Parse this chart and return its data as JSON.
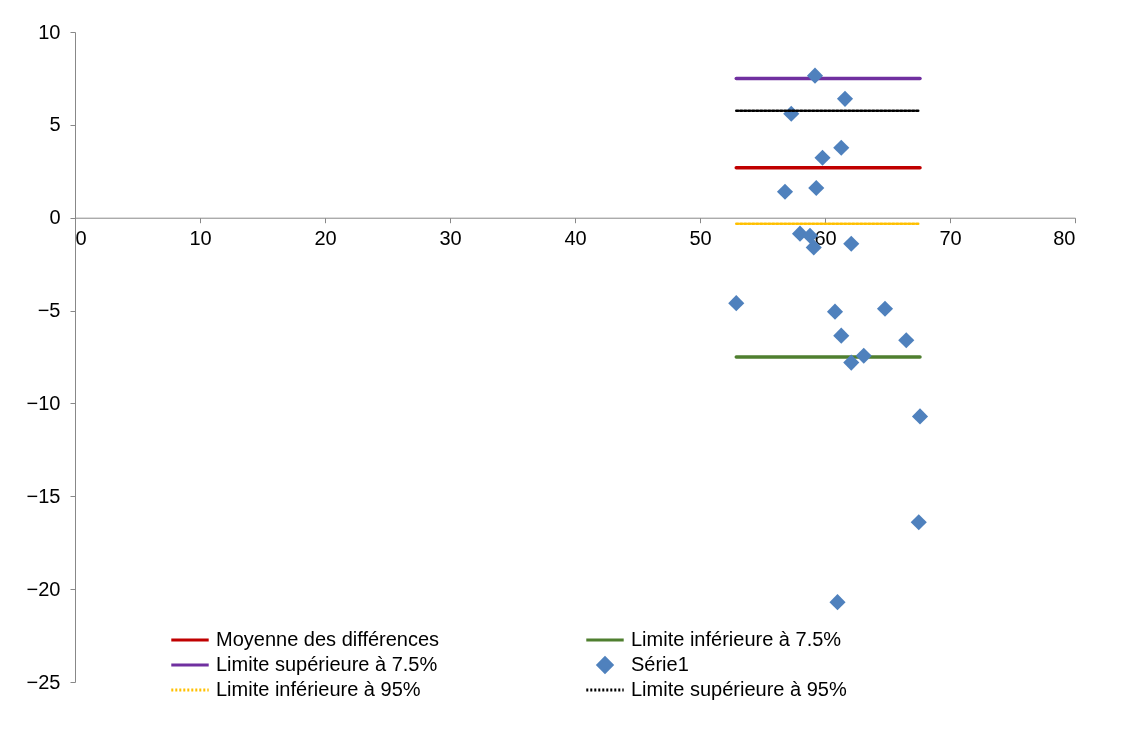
{
  "chart_data": {
    "type": "scatter",
    "xlim": [
      0,
      80
    ],
    "xticks": [
      0,
      10,
      20,
      30,
      40,
      50,
      60,
      70,
      80
    ],
    "ylim": [
      -25,
      10
    ],
    "yticks": [
      -25,
      -20,
      -15,
      -10,
      -5,
      0,
      5,
      10
    ],
    "grid": false,
    "legend": "bottom",
    "series": [
      {
        "name": "Moyenne des différences",
        "type": "line",
        "color": "#c00000",
        "marker": "none",
        "line_style": "solid",
        "x": [
          52.9,
          67.6
        ],
        "values": [
          2.69,
          2.69
        ]
      },
      {
        "name": "Limite supérieure à 7.5%",
        "type": "line",
        "color": "#7030a0",
        "marker": "none",
        "line_style": "solid",
        "x": [
          52.9,
          67.6
        ],
        "values": [
          7.5,
          7.5
        ]
      },
      {
        "name": "Limite inférieure à 95%",
        "type": "line",
        "color": "#ffc000",
        "marker": "none",
        "line_style": "dotted",
        "x": [
          52.9,
          67.6
        ],
        "values": [
          -0.32,
          -0.32
        ]
      },
      {
        "name": "Limite inférieure à 7.5%",
        "type": "line",
        "color": "#4f7f2f",
        "marker": "none",
        "line_style": "solid",
        "x": [
          52.9,
          67.6
        ],
        "values": [
          -7.5,
          -7.5
        ]
      },
      {
        "name": "Série1",
        "color": "#4f81bd",
        "marker": "diamond",
        "x": [
          59.2,
          61.6,
          57.3,
          61.3,
          59.8,
          56.8,
          59.3,
          58.0,
          58.8,
          59.1,
          62.1,
          52.9,
          60.8,
          64.8,
          61.3,
          66.5,
          62.1,
          63.1,
          67.6,
          67.5,
          61.0
        ],
        "values": [
          7.65,
          6.4,
          5.6,
          3.77,
          3.23,
          1.4,
          1.6,
          -0.86,
          -0.97,
          -1.6,
          -1.4,
          -4.6,
          -5.06,
          -4.9,
          -6.35,
          -6.6,
          -7.8,
          -7.43,
          -10.7,
          -16.4,
          -20.7
        ]
      },
      {
        "name": "Limite supérieure à 95%",
        "type": "line",
        "color": "#000000",
        "marker": "none",
        "line_style": "dotted",
        "x": [
          52.9,
          67.6
        ],
        "values": [
          5.76,
          5.76
        ]
      }
    ]
  }
}
